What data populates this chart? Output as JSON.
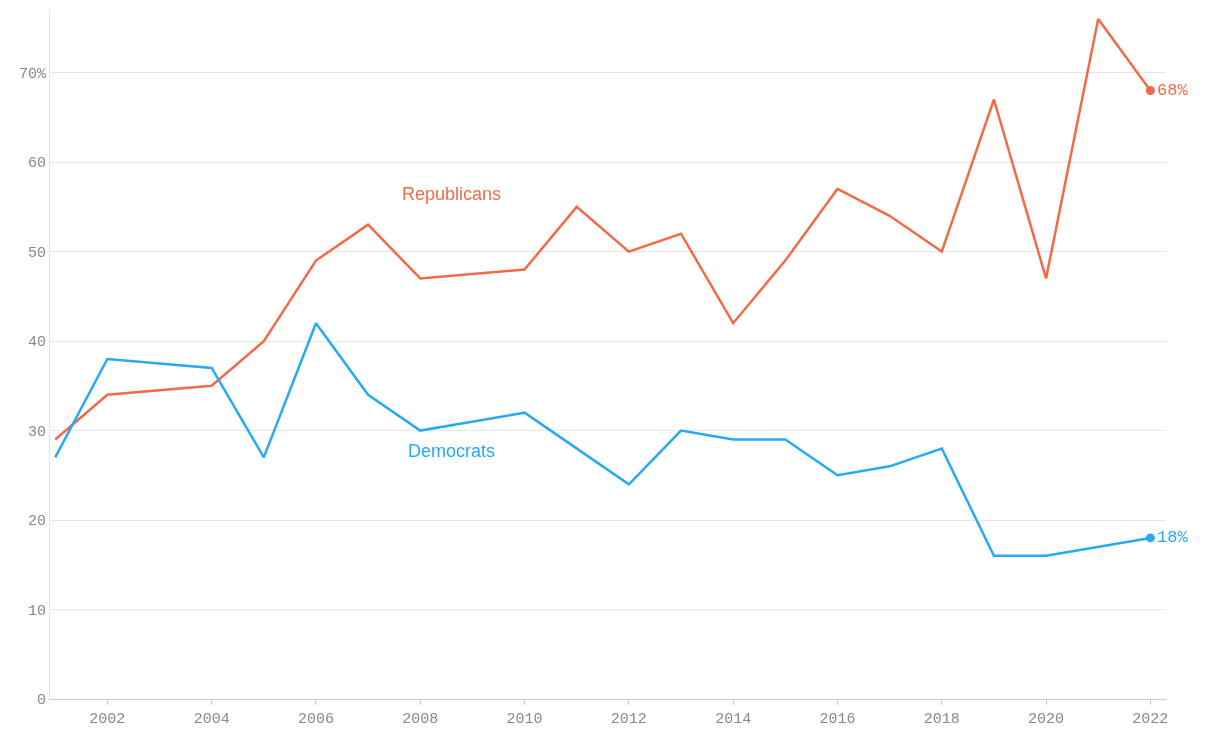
{
  "chart_data": {
    "type": "line",
    "series": [
      {
        "name": "Republicans",
        "color": "#f26b47",
        "x": [
          2001,
          2002,
          2004,
          2005,
          2006,
          2007,
          2008,
          2010,
          2011,
          2012,
          2013,
          2014,
          2015,
          2016,
          2017,
          2018,
          2019,
          2020,
          2021,
          2022
        ],
        "values": [
          29,
          34,
          35,
          40,
          49,
          53,
          47,
          48,
          55,
          50,
          52,
          42,
          49,
          57,
          54,
          50,
          67,
          47,
          76,
          68
        ],
        "value_labels": [
          null,
          null,
          null,
          null,
          null,
          null,
          null,
          null,
          null,
          null,
          null,
          null,
          null,
          null,
          null,
          null,
          null,
          null,
          null,
          "68%"
        ]
      },
      {
        "name": "Democrats",
        "color": "#27a9f5",
        "x": [
          2001,
          2002,
          2004,
          2005,
          2006,
          2007,
          2008,
          2010,
          2012,
          2013,
          2014,
          2015,
          2016,
          2017,
          2018,
          2019,
          2020,
          2022
        ],
        "values": [
          27,
          38,
          37,
          27,
          42,
          34,
          30,
          32,
          24,
          30,
          29,
          29,
          25,
          26,
          28,
          16,
          16,
          18
        ],
        "value_labels": [
          null,
          null,
          null,
          null,
          null,
          null,
          null,
          null,
          null,
          null,
          null,
          null,
          null,
          null,
          null,
          null,
          null,
          "18%"
        ]
      }
    ],
    "xlim": [
      2000.9,
      2022.3
    ],
    "xticks": [
      2002,
      2004,
      2006,
      2008,
      2010,
      2012,
      2014,
      2016,
      2018,
      2020,
      2022
    ],
    "ylim": [
      0,
      77
    ],
    "yticks": [
      0,
      10,
      20,
      30,
      40,
      50,
      60,
      {
        "value": 70,
        "label": "70%"
      }
    ],
    "grid": "y",
    "legend": false,
    "marker": "none",
    "line_style": "solid"
  }
}
